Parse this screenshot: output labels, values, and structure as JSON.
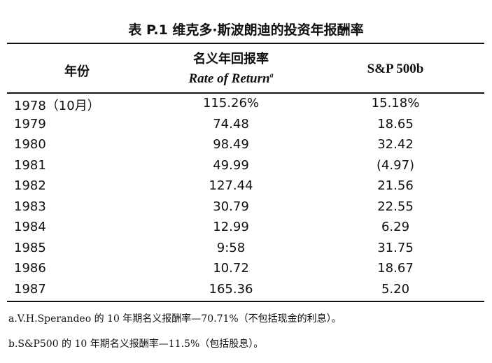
{
  "title": "表 P.1 维克多·斯波朗迪的投资年报酬率",
  "table": {
    "header": {
      "year": "年份",
      "nominal": "名义年回报率",
      "rate_of_return": "Rate of Return",
      "rate_note": "a",
      "sp500": "S&P 500b"
    },
    "rows": [
      [
        "1978（10月）",
        "115.26%",
        "15.18%"
      ],
      [
        "1979",
        "74.48",
        "18.65"
      ],
      [
        "1980",
        "98.49",
        "32.42"
      ],
      [
        "1981",
        "49.99",
        "(4.97)"
      ],
      [
        "1982",
        "127.44",
        "21.56"
      ],
      [
        "1983",
        "30.79",
        "22.55"
      ],
      [
        "1984",
        "12.99",
        "6.29"
      ],
      [
        "1985",
        "9:58",
        "31.75"
      ],
      [
        "1986",
        "10.72",
        "18.67"
      ],
      [
        "1987",
        "165.36",
        "5.20"
      ]
    ]
  },
  "footnotes": [
    "a.V.H.Sperandeo 的 10 年期名义报酬率—70.71%（不包括现金的利息）。",
    "b.S&P500 的 10 年期名义报酬率—11.5%（包括股息）。"
  ]
}
